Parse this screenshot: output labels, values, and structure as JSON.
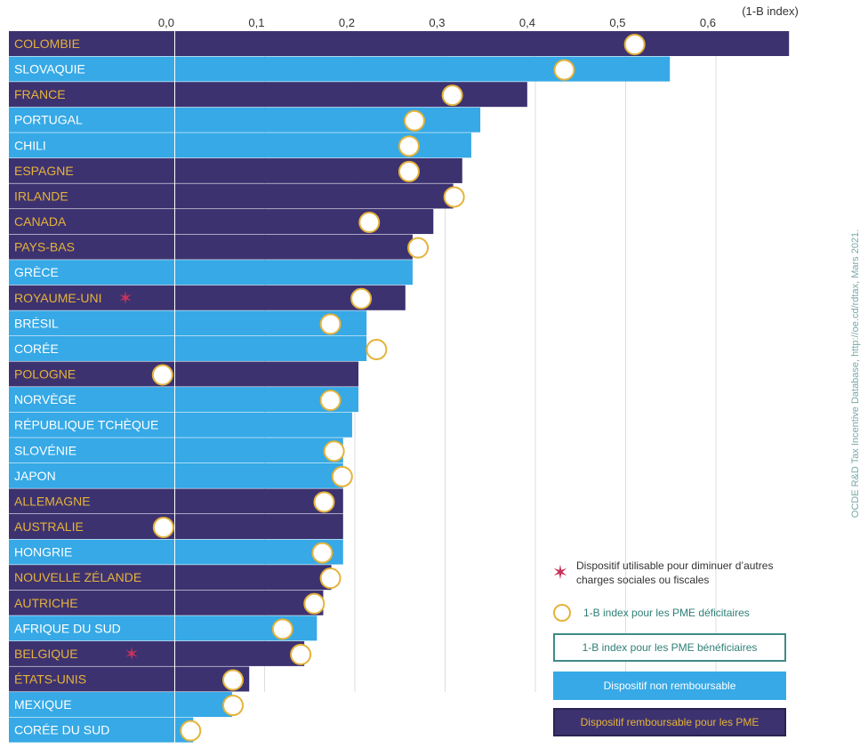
{
  "chart_data": {
    "type": "bar",
    "orientation": "horizontal",
    "unit_label": "(1-B index)",
    "x_ticks": [
      "0,0",
      "0,1",
      "0,2",
      "0,3",
      "0,4",
      "0,5",
      "0,6"
    ],
    "xlim": [
      0,
      0.68
    ],
    "grid": true,
    "categories": [
      "COLOMBIE",
      "SLOVAQUIE",
      "FRANCE",
      "PORTUGAL",
      "CHILI",
      "ESPAGNE",
      "IRLANDE",
      "CANADA",
      "PAYS-BAS",
      "GRÈCE",
      "ROYAUME-UNI",
      "BRÉSIL",
      "CORÉE",
      "POLOGNE",
      "NORVÈGE",
      "RÉPUBLIQUE TCHÈQUE",
      "SLOVÉNIE",
      "JAPON",
      "ALLEMAGNE",
      "AUSTRALIE",
      "HONGRIE",
      "NOUVELLE ZÉLANDE",
      "AUTRICHE",
      "AFRIQUE DU SUD",
      "BELGIQUE",
      "ÉTATS-UNIS",
      "MEXIQUE",
      "CORÉE DU SUD"
    ],
    "series": [
      {
        "name": "1-B index pour les PME bénéficiaires",
        "values": [
          0.68,
          0.548,
          0.39,
          0.338,
          0.328,
          0.318,
          0.308,
          0.286,
          0.263,
          0.263,
          0.255,
          0.212,
          0.212,
          0.203,
          0.203,
          0.196,
          0.186,
          0.186,
          0.186,
          0.186,
          0.186,
          0.173,
          0.164,
          0.157,
          0.143,
          0.082,
          0.063,
          0.02
        ],
        "scheme": [
          "remboursable",
          "non_remboursable",
          "remboursable",
          "non_remboursable",
          "non_remboursable",
          "remboursable",
          "remboursable",
          "remboursable",
          "remboursable",
          "non_remboursable",
          "remboursable",
          "non_remboursable",
          "non_remboursable",
          "remboursable",
          "non_remboursable",
          "non_remboursable",
          "non_remboursable",
          "non_remboursable",
          "remboursable",
          "remboursable",
          "non_remboursable",
          "remboursable",
          "remboursable",
          "non_remboursable",
          "remboursable",
          "remboursable",
          "non_remboursable",
          "non_remboursable"
        ]
      },
      {
        "name": "1-B index pour les PME déficitaires",
        "values": [
          0.51,
          0.432,
          0.308,
          0.266,
          0.26,
          0.26,
          0.31,
          0.216,
          0.27,
          null,
          0.207,
          0.173,
          0.224,
          -0.013,
          0.173,
          null,
          0.177,
          0.186,
          0.166,
          -0.012,
          0.164,
          0.173,
          0.155,
          0.12,
          0.14,
          0.065,
          0.065,
          0.018
        ]
      }
    ],
    "star_categories": [
      "ROYAUME-UNI",
      "BELGIQUE"
    ],
    "colors": {
      "remboursable": "#3d3270",
      "non_remboursable": "#36a9e6",
      "label_on_remboursable": "#e4b33b",
      "label_on_non_remboursable": "#ffffff",
      "circle_stroke": "#e4b33b",
      "star": "#c8325a",
      "grid": "#dddddd"
    }
  },
  "legend": {
    "star_text": "Dispositif utilisable pour diminuer d’autres charges sociales ou fiscales",
    "circle_text": "1-B index pour les PME déficitaires",
    "outline_text": "1-B index pour les PME bénéficiaires",
    "blue_text": "Dispositif non remboursable",
    "purple_text": "Dispositif remboursable pour les PME"
  },
  "source": "OCDE R&D Tax Incentive Database, http://oe.cd/rdtax, Mars 2021."
}
